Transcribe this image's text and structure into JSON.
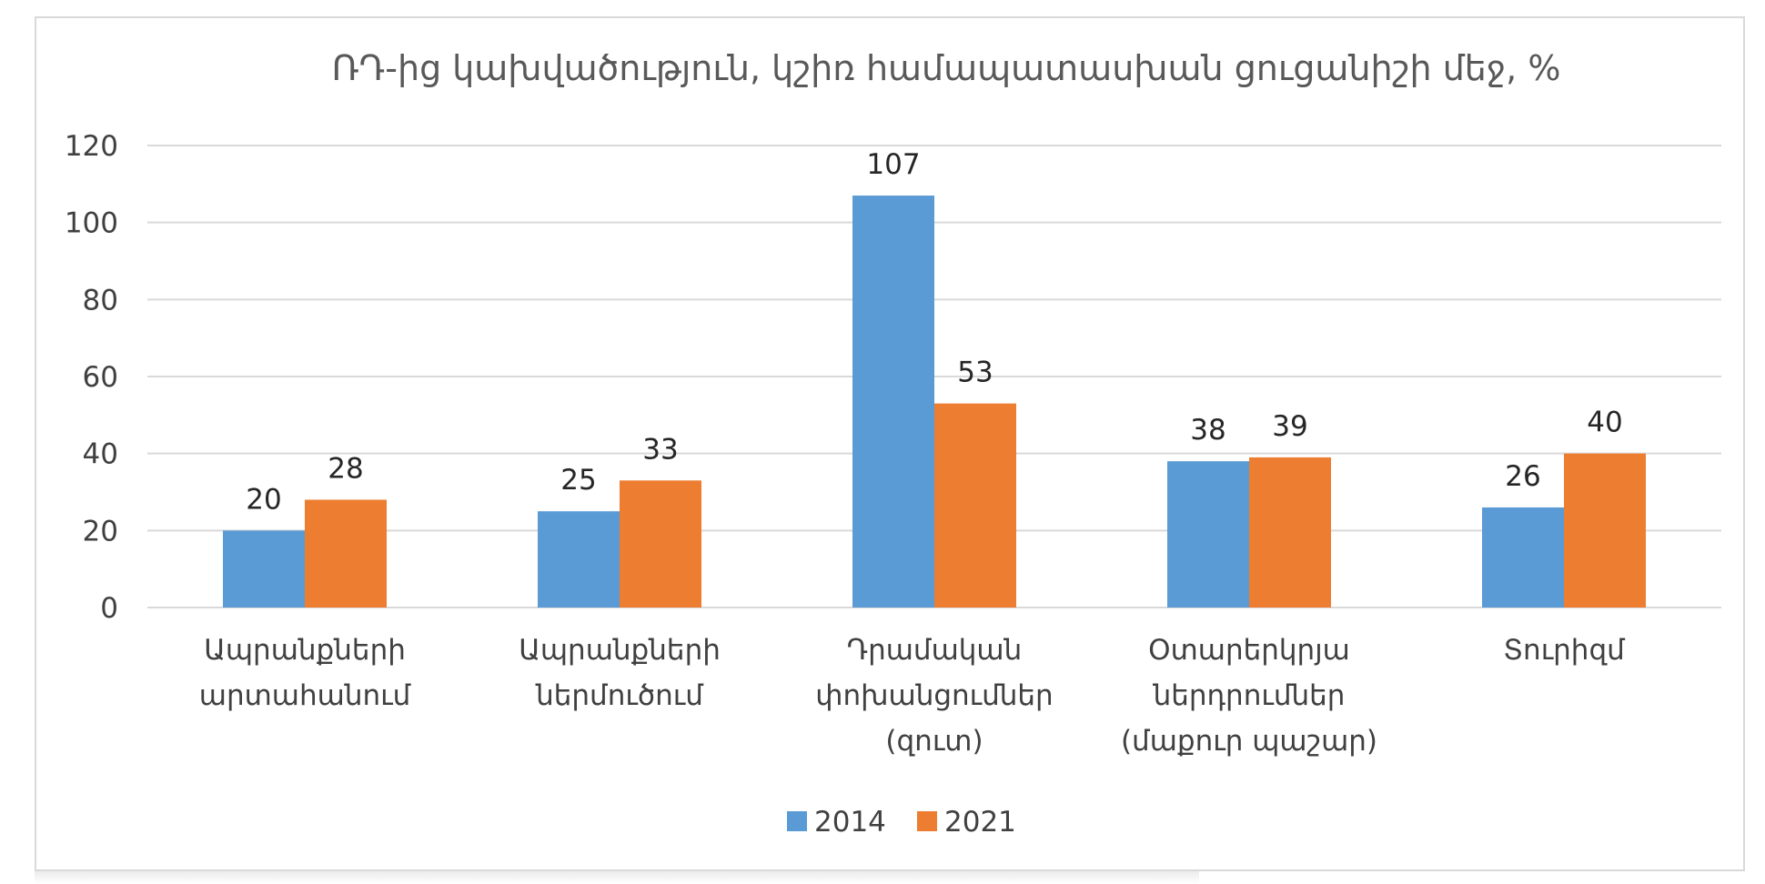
{
  "chart_data": {
    "type": "bar",
    "title": "ՌԴ-ից կախվածություն, կշիռ համապատասխան ցուցանիշի մեջ, %",
    "categories": [
      [
        "Ապրանքների",
        "արտահանում"
      ],
      [
        "Ապրանքների",
        "ներմուծում"
      ],
      [
        "Դրամական",
        "փոխանցումներ",
        "(զուտ)"
      ],
      [
        "Օտարերկրյա",
        "ներդրումներ",
        "(մաքուր պաշար)"
      ],
      [
        "Տուրիզմ"
      ]
    ],
    "series": [
      {
        "name": "2014",
        "color": "#5b9bd5",
        "values": [
          20,
          25,
          107,
          38,
          26
        ]
      },
      {
        "name": "2021",
        "color": "#ed7d31",
        "values": [
          28,
          33,
          53,
          39,
          40
        ]
      }
    ],
    "ylim": [
      0,
      120
    ],
    "yticks": [
      0,
      20,
      40,
      60,
      80,
      100,
      120
    ],
    "grid": true,
    "legend_position": "bottom",
    "gridline_color": "#d9d9d9"
  }
}
